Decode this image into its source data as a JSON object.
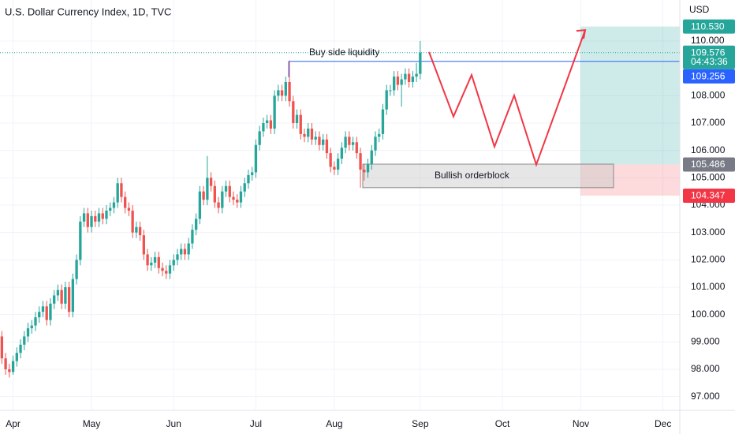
{
  "chart_data": {
    "type": "candlestick",
    "title": "U.S. Dollar Currency Index, 1D, TVC",
    "currency": "USD",
    "countdown": "04:43:36",
    "up_color": "#26a69a",
    "down_color": "#ef5350",
    "grid": true,
    "categories": [
      null,
      null,
      null,
      "Apr",
      null,
      null,
      null,
      null,
      null,
      null,
      null,
      null,
      null,
      null,
      null,
      null,
      null,
      null,
      null,
      null,
      null,
      null,
      null,
      null,
      "May",
      null,
      null,
      null,
      null,
      null,
      null,
      null,
      null,
      null,
      null,
      null,
      null,
      null,
      null,
      null,
      null,
      null,
      null,
      null,
      null,
      null,
      "Jun",
      null,
      null,
      null,
      null,
      null,
      null,
      null,
      null,
      null,
      null,
      null,
      null,
      null,
      null,
      null,
      null,
      null,
      null,
      null,
      null,
      null,
      "Jul",
      null,
      null,
      null,
      null,
      null,
      null,
      null,
      null,
      null,
      null,
      null,
      null,
      null,
      null,
      null,
      null,
      null,
      null,
      null,
      null,
      "Aug",
      null,
      null,
      null,
      null,
      null,
      null,
      null,
      null,
      null,
      null,
      null,
      null,
      null,
      null,
      null,
      null,
      null,
      null,
      null,
      null,
      null,
      null,
      "Sep",
      null,
      null,
      null,
      null,
      null,
      null,
      null,
      null,
      null,
      null,
      null,
      null,
      null,
      null,
      null,
      null,
      null,
      null,
      null,
      null,
      null,
      "Oct",
      null,
      null,
      null,
      null,
      null,
      null,
      null,
      null,
      null,
      null,
      null,
      null,
      null,
      null,
      null,
      null,
      null,
      null,
      null,
      null,
      "Nov",
      null,
      null,
      null,
      null,
      null,
      null,
      null,
      null,
      null,
      null,
      null,
      null,
      null,
      null,
      null,
      null,
      null,
      null,
      null,
      null,
      null,
      "Dec",
      null,
      null,
      null,
      null
    ],
    "open": [
      99.2,
      98.4,
      98.0,
      97.9,
      98.3,
      98.6,
      98.9,
      99.2,
      99.5,
      99.6,
      99.9,
      100.1,
      100.3,
      99.8,
      100.4,
      100.7,
      100.9,
      100.4,
      101.0,
      100.1,
      101.3,
      102.0,
      103.4,
      103.7,
      103.2,
      103.6,
      103.4,
      103.7,
      103.5,
      103.8,
      103.9,
      104.1,
      104.8,
      104.3,
      103.9,
      103.8,
      103.0,
      103.2,
      102.9,
      102.2,
      101.8,
      101.9,
      102.1,
      101.7,
      101.6,
      101.5,
      101.8,
      102.0,
      102.2,
      102.4,
      102.2,
      102.6,
      103.1,
      103.5,
      104.5,
      104.2,
      105.0,
      104.7,
      104.1,
      103.9,
      104.5,
      104.7,
      104.3,
      104.2,
      104.1,
      104.5,
      104.8,
      105.1,
      105.2,
      106.2,
      106.7,
      107.0,
      107.1,
      106.8,
      108.0,
      108.2,
      108.0,
      108.5,
      107.8,
      107.0,
      107.3,
      106.6,
      106.5,
      106.8,
      106.4,
      106.5,
      106.2,
      106.4,
      105.9,
      105.4,
      105.3,
      105.7,
      106.1,
      106.5,
      106.2,
      106.3,
      105.9,
      105.3,
      105.2,
      105.5,
      106.0,
      106.5,
      106.6,
      107.5,
      108.2,
      108.2,
      108.7,
      108.4,
      108.6,
      108.8,
      108.5,
      108.7,
      108.8,
      null,
      null,
      null,
      null,
      null,
      null,
      null,
      null,
      null,
      null,
      null,
      null,
      null,
      null,
      null,
      null,
      null,
      null,
      null,
      null,
      null,
      null,
      null,
      null,
      null,
      null,
      null,
      null,
      null,
      null,
      null,
      null,
      null,
      null,
      null,
      null,
      null,
      null,
      null,
      null,
      null,
      null,
      null,
      null,
      null,
      null,
      null,
      null,
      null,
      null,
      null,
      null,
      null,
      null,
      null,
      null,
      null,
      null,
      null,
      null,
      null,
      null,
      null,
      null,
      null,
      null,
      null,
      null,
      null
    ],
    "high": [
      99.4,
      98.6,
      98.2,
      98.5,
      98.8,
      99.1,
      99.4,
      99.7,
      99.8,
      100.1,
      100.3,
      100.5,
      100.5,
      100.6,
      100.9,
      101.1,
      101.1,
      101.2,
      101.2,
      101.5,
      102.2,
      103.6,
      103.9,
      103.9,
      103.8,
      103.8,
      103.9,
      103.9,
      104.0,
      104.1,
      104.3,
      105.0,
      105.0,
      104.5,
      104.1,
      104.0,
      103.4,
      103.4,
      103.1,
      102.4,
      102.1,
      102.3,
      102.3,
      101.9,
      101.8,
      102.0,
      102.2,
      102.4,
      102.6,
      102.6,
      102.8,
      103.3,
      103.7,
      104.7,
      104.7,
      105.8,
      105.2,
      104.9,
      104.3,
      104.7,
      104.9,
      104.9,
      104.5,
      104.4,
      104.7,
      105.0,
      105.3,
      105.4,
      106.4,
      106.9,
      107.2,
      107.3,
      107.3,
      108.2,
      108.4,
      108.4,
      108.7,
      109.29,
      108.0,
      107.5,
      107.5,
      106.8,
      107.0,
      107.0,
      106.7,
      106.7,
      106.6,
      106.6,
      106.1,
      105.6,
      105.9,
      106.3,
      106.7,
      106.7,
      106.5,
      106.5,
      106.1,
      105.5,
      105.7,
      106.2,
      106.7,
      106.8,
      107.7,
      108.4,
      108.4,
      108.9,
      108.9,
      108.8,
      109.0,
      109.0,
      108.9,
      109.2,
      110.0,
      null,
      null,
      null,
      null,
      null,
      null,
      null,
      null,
      null,
      null,
      null,
      null,
      null,
      null,
      null,
      null,
      null,
      null,
      null,
      null,
      null,
      null,
      null,
      null,
      null,
      null,
      null,
      null,
      null,
      null,
      null,
      null,
      null,
      null,
      null,
      null,
      null,
      null,
      null,
      null,
      null,
      null,
      null,
      null,
      null,
      null,
      null,
      null,
      null,
      null,
      null,
      null,
      null,
      null,
      null,
      null,
      null,
      null,
      null,
      null,
      null,
      null,
      null,
      null,
      null,
      null,
      null,
      null,
      null
    ],
    "low": [
      98.2,
      97.8,
      97.7,
      97.8,
      98.1,
      98.4,
      98.7,
      99.0,
      99.3,
      99.4,
      99.7,
      99.9,
      99.6,
      99.6,
      100.2,
      100.5,
      100.2,
      100.2,
      99.9,
      99.9,
      101.1,
      101.8,
      103.2,
      103.0,
      103.0,
      103.2,
      103.2,
      103.3,
      103.3,
      103.6,
      103.7,
      103.9,
      104.1,
      103.7,
      103.6,
      102.8,
      102.8,
      102.7,
      102.0,
      101.6,
      101.6,
      101.7,
      101.5,
      101.4,
      101.3,
      101.3,
      101.6,
      101.8,
      102.0,
      102.0,
      102.0,
      102.4,
      102.9,
      103.3,
      104.0,
      104.0,
      104.5,
      103.9,
      103.7,
      103.7,
      104.3,
      104.1,
      104.0,
      103.9,
      103.9,
      104.3,
      104.6,
      104.9,
      105.0,
      106.0,
      106.5,
      106.8,
      106.6,
      106.6,
      107.8,
      107.8,
      107.8,
      107.6,
      106.8,
      106.8,
      106.4,
      106.3,
      106.3,
      106.2,
      106.2,
      106.0,
      106.0,
      105.7,
      105.2,
      105.1,
      105.1,
      105.5,
      105.9,
      106.0,
      106.0,
      105.7,
      104.64,
      104.9,
      105.0,
      105.3,
      105.8,
      106.3,
      106.4,
      107.3,
      108.0,
      108.0,
      108.2,
      107.6,
      108.4,
      108.3,
      108.3,
      108.5,
      108.6,
      null,
      null,
      null,
      null,
      null,
      null,
      null,
      null,
      null,
      null,
      null,
      null,
      null,
      null,
      null,
      null,
      null,
      null,
      null,
      null,
      null,
      null,
      null,
      null,
      null,
      null,
      null,
      null,
      null,
      null,
      null,
      null,
      null,
      null,
      null,
      null,
      null,
      null,
      null,
      null,
      null,
      null,
      null,
      null,
      null,
      null,
      null,
      null,
      null,
      null,
      null,
      null,
      null,
      null,
      null,
      null,
      null,
      null,
      null,
      null,
      null,
      null,
      null,
      null,
      null,
      null,
      null,
      null,
      null
    ],
    "close": [
      98.4,
      98.0,
      97.9,
      98.3,
      98.6,
      98.9,
      99.2,
      99.5,
      99.6,
      99.9,
      100.1,
      100.3,
      99.8,
      100.4,
      100.7,
      100.9,
      100.4,
      101.0,
      100.1,
      101.3,
      102.0,
      103.4,
      103.7,
      103.2,
      103.6,
      103.4,
      103.7,
      103.5,
      103.8,
      103.9,
      104.1,
      104.8,
      104.3,
      103.9,
      103.8,
      103.0,
      103.2,
      102.9,
      102.2,
      101.8,
      101.9,
      102.1,
      101.7,
      101.6,
      101.5,
      101.8,
      102.0,
      102.2,
      102.4,
      102.2,
      102.6,
      103.1,
      103.5,
      104.5,
      104.2,
      105.0,
      104.7,
      104.1,
      103.9,
      104.5,
      104.7,
      104.3,
      104.2,
      104.1,
      104.5,
      104.8,
      105.1,
      105.2,
      106.2,
      106.7,
      107.0,
      107.1,
      106.8,
      108.0,
      108.2,
      108.0,
      108.5,
      107.8,
      107.0,
      107.3,
      106.6,
      106.5,
      106.8,
      106.4,
      106.5,
      106.2,
      106.4,
      105.9,
      105.4,
      105.3,
      105.7,
      106.1,
      106.5,
      106.2,
      106.3,
      105.9,
      105.3,
      105.2,
      105.5,
      106.0,
      106.5,
      106.6,
      107.5,
      108.2,
      108.2,
      108.7,
      108.4,
      108.6,
      108.8,
      108.5,
      108.7,
      108.8,
      109.576,
      null,
      null,
      null,
      null,
      null,
      null,
      null,
      null,
      null,
      null,
      null,
      null,
      null,
      null,
      null,
      null,
      null,
      null,
      null,
      null,
      null,
      null,
      null,
      null,
      null,
      null,
      null,
      null,
      null,
      null,
      null,
      null,
      null,
      null,
      null,
      null,
      null,
      null,
      null,
      null,
      null,
      null,
      null,
      null,
      null,
      null,
      null,
      null,
      null,
      null,
      null,
      null,
      null,
      null,
      null,
      null,
      null,
      null,
      null,
      null,
      null,
      null,
      null,
      null,
      null,
      null,
      null,
      null,
      null
    ],
    "ylim": [
      96.5,
      111.5
    ],
    "yticks": [
      {
        "value": 97,
        "label": "97.000"
      },
      {
        "value": 98,
        "label": "98.000"
      },
      {
        "value": 99,
        "label": "99.000"
      },
      {
        "value": 100,
        "label": "100.000"
      },
      {
        "value": 101,
        "label": "101.000"
      },
      {
        "value": 102,
        "label": "102.000"
      },
      {
        "value": 103,
        "label": "103.000"
      },
      {
        "value": 104,
        "label": "104.000"
      },
      {
        "value": 105,
        "label": "105.000"
      },
      {
        "value": 106,
        "label": "106.000"
      },
      {
        "value": 107,
        "label": "107.000"
      },
      {
        "value": 108,
        "label": "108.000"
      },
      {
        "value": 110,
        "label": "110.000"
      }
    ],
    "price_labels": [
      {
        "value": 110.53,
        "label": "110.530",
        "color": "#26a69a"
      },
      {
        "value": 109.576,
        "label": "109.576",
        "color": "#26a69a"
      },
      {
        "value": 109.256,
        "label": "109.256",
        "color": "#2962ff"
      },
      {
        "value": 105.486,
        "label": "105.486",
        "color": "#787b86"
      },
      {
        "value": 104.347,
        "label": "104.347",
        "color": "#f23645"
      }
    ],
    "position": {
      "target": 110.53,
      "entry": 105.486,
      "stop": 104.347
    },
    "liquidity": {
      "label": "Buy side liquidity",
      "value": 109.256,
      "color": "#2962ff"
    },
    "orderblock": {
      "label": "Bullish orderblock",
      "top": 105.5,
      "bottom": 104.64
    },
    "projection": {
      "color": "#f23645",
      "values": [
        109.6,
        107.24,
        108.76,
        106.14,
        108.01,
        105.48,
        110.4
      ]
    }
  }
}
